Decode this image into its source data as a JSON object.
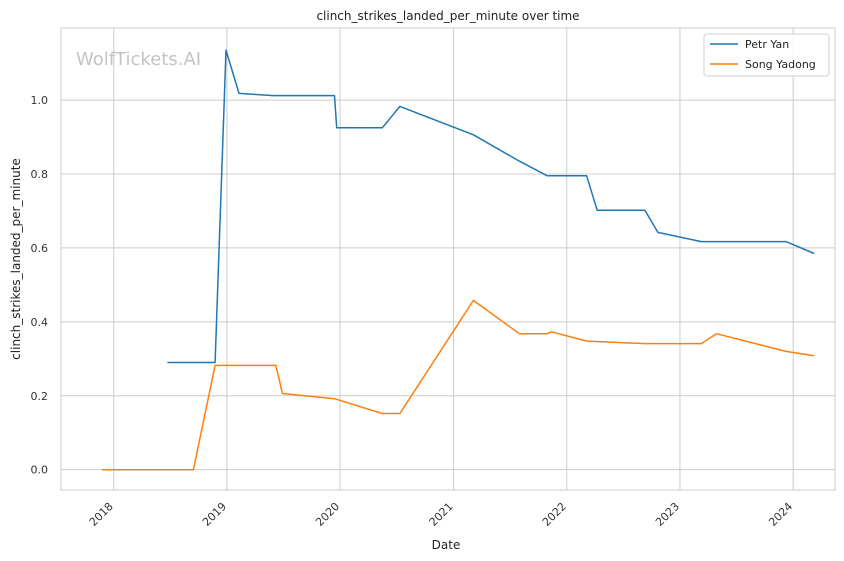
{
  "chart_data": {
    "type": "line",
    "title": "clinch_strikes_landed_per_minute over time",
    "xlabel": "Date",
    "ylabel": "clinch_strikes_landed_per_minute",
    "watermark": "WolfTickets.AI",
    "x_ticks": [
      "2018",
      "2019",
      "2020",
      "2021",
      "2022",
      "2023",
      "2024"
    ],
    "y_ticks": [
      "0.0",
      "0.2",
      "0.4",
      "0.6",
      "0.8",
      "1.0"
    ],
    "xlim": [
      "2017-07-15",
      "2024-05-15"
    ],
    "ylim": [
      -0.055,
      1.195
    ],
    "grid": true,
    "legend_position": "top-right",
    "series": [
      {
        "name": "Petr Yan",
        "color": "#1f77b4",
        "points": [
          [
            "2018-06-23",
            0.29
          ],
          [
            "2018-11-24",
            0.29
          ],
          [
            "2018-12-29",
            1.135
          ],
          [
            "2019-02-09",
            1.018
          ],
          [
            "2019-06-01",
            1.012
          ],
          [
            "2019-12-14",
            1.012
          ],
          [
            "2019-12-21",
            0.925
          ],
          [
            "2020-05-16",
            0.925
          ],
          [
            "2020-07-12",
            0.983
          ],
          [
            "2021-03-06",
            0.906
          ],
          [
            "2021-08-01",
            0.835
          ],
          [
            "2021-10-30",
            0.795
          ],
          [
            "2022-03-06",
            0.795
          ],
          [
            "2022-04-09",
            0.702
          ],
          [
            "2022-09-10",
            0.702
          ],
          [
            "2022-10-22",
            0.642
          ],
          [
            "2023-03-11",
            0.617
          ],
          [
            "2023-12-09",
            0.617
          ],
          [
            "2024-03-09",
            0.585
          ]
        ]
      },
      {
        "name": "Song Yadong",
        "color": "#ff7f0e",
        "points": [
          [
            "2017-11-25",
            0.0
          ],
          [
            "2018-09-15",
            0.0
          ],
          [
            "2018-11-24",
            0.282
          ],
          [
            "2019-06-08",
            0.282
          ],
          [
            "2019-06-29",
            0.206
          ],
          [
            "2019-12-14",
            0.192
          ],
          [
            "2020-05-16",
            0.152
          ],
          [
            "2020-07-12",
            0.152
          ],
          [
            "2021-03-06",
            0.458
          ],
          [
            "2021-08-01",
            0.368
          ],
          [
            "2021-10-30",
            0.368
          ],
          [
            "2021-11-13",
            0.373
          ],
          [
            "2022-03-06",
            0.348
          ],
          [
            "2022-09-10",
            0.341
          ],
          [
            "2023-03-11",
            0.341
          ],
          [
            "2023-04-29",
            0.368
          ],
          [
            "2023-12-09",
            0.32
          ],
          [
            "2024-03-09",
            0.308
          ]
        ]
      }
    ]
  }
}
